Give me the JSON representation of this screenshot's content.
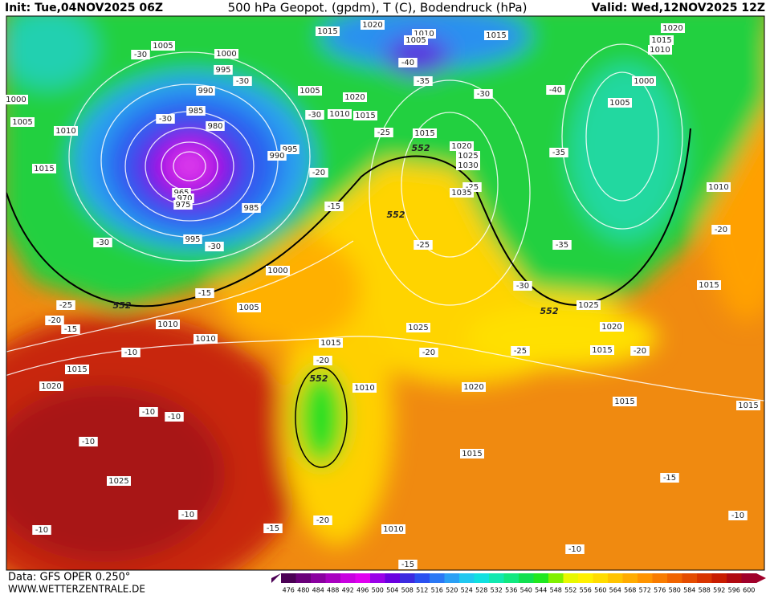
{
  "header": {
    "init": "Init: Tue,04NOV2025 06Z",
    "title": "500 hPa Geopot. (gpdm), T (C), Bodendruck (hPa)",
    "valid": "Valid: Wed,12NOV2025 12Z"
  },
  "footer": {
    "data": "Data: GFS OPER 0.250°",
    "site": "WWW.WETTERZENTRALE.DE"
  },
  "isobar_labels": [
    1005,
    1015,
    1020,
    1010,
    1005,
    1015,
    1020,
    1015,
    1010,
    1000,
    995,
    990,
    985,
    980,
    1005,
    1020,
    1010,
    1015,
    1000,
    1005,
    1000,
    1005,
    1010,
    1015,
    1015,
    1020,
    1025,
    1030,
    1035,
    995,
    990,
    965,
    970,
    975,
    985,
    995,
    1010,
    1000,
    1015,
    1005,
    1025,
    1010,
    1020,
    1025,
    1010,
    1015,
    1015,
    1015,
    1020,
    1010,
    1020,
    1015,
    1015,
    1025,
    1015,
    1010
  ],
  "temperature_labels": [
    -30,
    -40,
    -35,
    -30,
    -30,
    -40,
    -30,
    -30,
    -25,
    -35,
    -20,
    -25,
    -15,
    -30,
    -30,
    -25,
    -35,
    -20,
    -30,
    -15,
    -25,
    -20,
    -15,
    -10,
    -20,
    -25,
    -20,
    -20,
    -10,
    -10,
    -10,
    -15,
    -10,
    -10,
    -10,
    -15,
    -20,
    -10,
    -15
  ],
  "height_labels": [
    552,
    552,
    552,
    552,
    552
  ],
  "colorbar": {
    "ticks": [
      476,
      480,
      484,
      488,
      492,
      496,
      500,
      504,
      508,
      512,
      516,
      520,
      524,
      528,
      532,
      536,
      540,
      544,
      548,
      552,
      556,
      560,
      564,
      568,
      572,
      576,
      580,
      584,
      588,
      592,
      596,
      600
    ],
    "colors": [
      "#4b0055",
      "#6a007a",
      "#8a00a0",
      "#a800c0",
      "#c800e0",
      "#e000f0",
      "#9a00e8",
      "#6a00e0",
      "#3c2ae0",
      "#2a50f0",
      "#2a78f5",
      "#2aa0f5",
      "#20c8f0",
      "#10e0e0",
      "#10e8b0",
      "#10e880",
      "#10e050",
      "#20e820",
      "#80f000",
      "#e8f800",
      "#fff000",
      "#ffdc00",
      "#ffc400",
      "#ffac00",
      "#ff9400",
      "#f87c00",
      "#f06400",
      "#e44c00",
      "#d83400",
      "#c81c00",
      "#b00a10",
      "#a0002a"
    ]
  }
}
